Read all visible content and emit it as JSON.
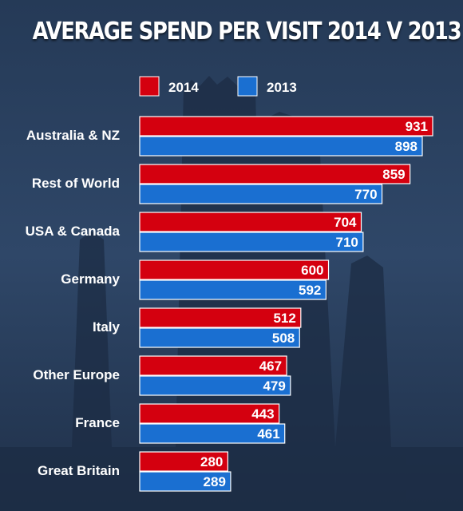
{
  "chart_data": {
    "type": "bar",
    "orientation": "horizontal",
    "title": "AVERAGE SPEND PER VISIT 2014 V 2013",
    "legend_position": "top",
    "grid": false,
    "categories": [
      "Australia & NZ",
      "Rest of World",
      "USA & Canada",
      "Germany",
      "Italy",
      "Other Europe",
      "France",
      "Great Britain"
    ],
    "series": [
      {
        "name": "2014",
        "color": "#d4000f",
        "values": [
          931,
          859,
          704,
          600,
          512,
          467,
          443,
          280
        ]
      },
      {
        "name": "2013",
        "color": "#1a6fd1",
        "values": [
          898,
          770,
          710,
          592,
          508,
          479,
          461,
          289
        ]
      }
    ],
    "xlim": [
      0,
      931
    ]
  }
}
